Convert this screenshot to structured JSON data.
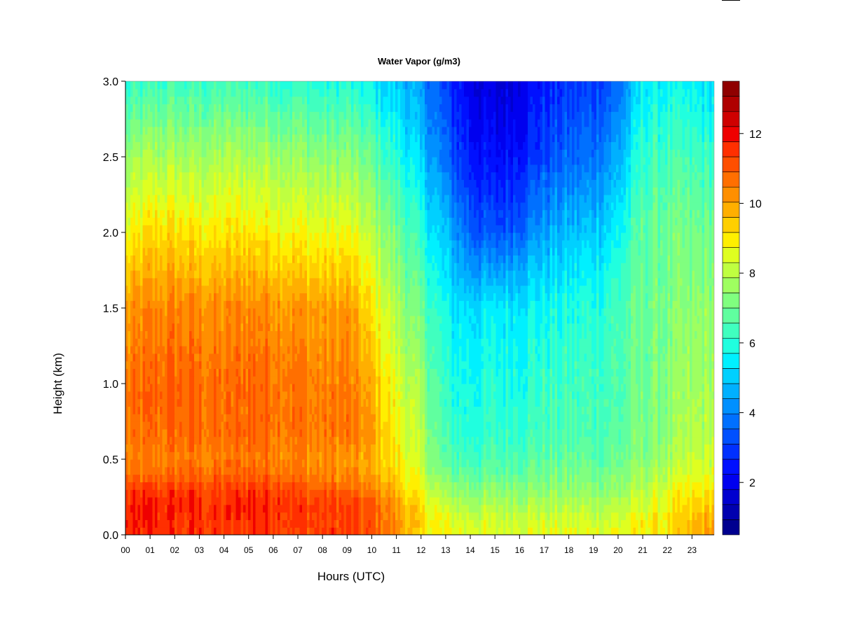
{
  "chart_data": {
    "type": "heatmap",
    "title": "Water Vapor (g/m3)",
    "xlabel": "Hours (UTC)",
    "ylabel": "Height (km)",
    "x_ticks": [
      "00",
      "01",
      "02",
      "03",
      "04",
      "05",
      "06",
      "07",
      "08",
      "09",
      "10",
      "11",
      "12",
      "13",
      "14",
      "15",
      "16",
      "17",
      "18",
      "19",
      "20",
      "21",
      "22",
      "23"
    ],
    "y_ticks": [
      "0.0",
      "0.5",
      "1.0",
      "1.5",
      "2.0",
      "2.5",
      "3.0"
    ],
    "xlim": [
      0,
      23.9
    ],
    "ylim": [
      0,
      3.0
    ],
    "colorbar": {
      "ticks": [
        "2",
        "4",
        "6",
        "8",
        "10",
        "12"
      ],
      "range": [
        0.5,
        13.5
      ],
      "levels": [
        0.5,
        1.0,
        1.5,
        2.0,
        2.5,
        3.0,
        3.5,
        4.0,
        4.5,
        5.0,
        5.5,
        6.0,
        6.5,
        7.0,
        7.5,
        8.0,
        8.5,
        9.0,
        9.5,
        10.0,
        10.5,
        11.0,
        11.5,
        12.0,
        12.5,
        13.0,
        13.5
      ],
      "colors": [
        "#00008F",
        "#0000AF",
        "#0000CF",
        "#0000EF",
        "#0010FF",
        "#0030FF",
        "#0050FF",
        "#0070FF",
        "#0090FF",
        "#00B0FF",
        "#00D0FF",
        "#00F0FF",
        "#20FFDF",
        "#40FFBF",
        "#60FF9F",
        "#80FF7F",
        "#9FFF60",
        "#BFFF40",
        "#DFFF20",
        "#FFEF00",
        "#FFCF00",
        "#FFAF00",
        "#FF8F00",
        "#FF6F00",
        "#FF4F00",
        "#FF2F00",
        "#EF0000",
        "#CF0000",
        "#AF0000",
        "#8F0000"
      ]
    },
    "heights_km": [
      0.0,
      0.1,
      0.2,
      0.3,
      0.4,
      0.5,
      0.7,
      1.0,
      1.5,
      2.0,
      2.5,
      3.0
    ],
    "hours": [
      0,
      1,
      2,
      3,
      4,
      5,
      6,
      7,
      8,
      9,
      10,
      11,
      12,
      13,
      14,
      15,
      16,
      17,
      18,
      19,
      20,
      21,
      22,
      23,
      23.9
    ],
    "values": [
      [
        11.5,
        11.5,
        11.5,
        11.5,
        11.3,
        11.5,
        11.5,
        11.3,
        11.3,
        11.3,
        11.0,
        10.2,
        9.0,
        8.7,
        8.6,
        8.5,
        8.6,
        8.6,
        8.6,
        8.6,
        8.6,
        8.9,
        9.0,
        9.5,
        10.3
      ],
      [
        11.6,
        11.7,
        11.6,
        11.5,
        11.4,
        11.6,
        11.7,
        11.4,
        11.3,
        11.3,
        11.0,
        10.3,
        9.2,
        8.5,
        8.3,
        8.3,
        8.4,
        8.3,
        8.3,
        8.3,
        8.4,
        8.8,
        9.0,
        9.5,
        10.0
      ],
      [
        11.6,
        11.7,
        11.7,
        11.6,
        11.5,
        11.8,
        11.8,
        11.5,
        11.4,
        11.3,
        11.0,
        10.1,
        9.0,
        8.1,
        7.8,
        7.8,
        7.9,
        7.9,
        7.9,
        7.9,
        7.9,
        8.3,
        8.8,
        9.1,
        9.4
      ],
      [
        11.2,
        11.3,
        11.4,
        11.3,
        11.3,
        11.5,
        11.4,
        11.2,
        11.0,
        10.8,
        10.5,
        9.6,
        8.6,
        7.5,
        7.3,
        7.3,
        7.4,
        7.4,
        7.4,
        7.4,
        7.5,
        8.0,
        8.5,
        8.8,
        9.0
      ],
      [
        10.6,
        10.7,
        10.8,
        10.8,
        10.7,
        10.9,
        10.8,
        10.6,
        10.4,
        10.3,
        10.0,
        9.2,
        8.3,
        7.0,
        6.8,
        6.8,
        7.0,
        7.0,
        7.1,
        7.1,
        7.2,
        7.6,
        8.0,
        8.4,
        8.6
      ],
      [
        10.3,
        10.4,
        10.5,
        10.5,
        10.4,
        10.6,
        10.6,
        10.4,
        10.2,
        10.1,
        9.8,
        9.0,
        8.0,
        6.6,
        6.4,
        6.5,
        6.7,
        6.7,
        6.8,
        6.8,
        6.9,
        7.3,
        7.7,
        8.1,
        8.3
      ],
      [
        10.5,
        10.7,
        10.8,
        10.8,
        10.6,
        10.9,
        10.8,
        10.6,
        10.5,
        10.6,
        10.0,
        8.8,
        7.8,
        6.2,
        6.0,
        6.1,
        6.3,
        6.4,
        6.5,
        6.5,
        6.7,
        7.1,
        7.4,
        7.8,
        8.0
      ],
      [
        10.5,
        10.8,
        10.9,
        10.8,
        10.6,
        10.9,
        10.8,
        10.6,
        10.4,
        10.5,
        9.7,
        8.5,
        7.5,
        6.0,
        5.8,
        5.9,
        6.0,
        6.2,
        6.3,
        6.4,
        6.5,
        7.0,
        7.3,
        7.6,
        7.8
      ],
      [
        10.0,
        10.3,
        10.4,
        10.3,
        10.2,
        10.4,
        10.3,
        10.1,
        10.0,
        10.1,
        9.0,
        7.8,
        6.8,
        5.6,
        5.3,
        5.4,
        5.6,
        5.7,
        5.9,
        6.0,
        6.4,
        6.9,
        7.1,
        7.3,
        7.5
      ],
      [
        8.6,
        9.2,
        9.2,
        9.0,
        9.0,
        9.1,
        9.0,
        8.8,
        8.6,
        8.7,
        8.0,
        7.0,
        6.0,
        4.8,
        3.6,
        3.2,
        3.8,
        4.5,
        4.8,
        5.0,
        5.6,
        6.8,
        7.0,
        7.0,
        7.1
      ],
      [
        7.4,
        7.8,
        7.8,
        7.7,
        7.8,
        7.8,
        7.7,
        7.6,
        7.4,
        7.4,
        6.8,
        6.0,
        5.0,
        3.6,
        2.6,
        2.2,
        2.6,
        3.2,
        3.6,
        3.8,
        4.6,
        6.2,
        6.4,
        6.3,
        6.2
      ],
      [
        6.0,
        6.3,
        6.3,
        6.2,
        6.3,
        6.3,
        6.2,
        6.1,
        5.9,
        5.9,
        5.5,
        5.0,
        4.2,
        3.0,
        2.0,
        1.6,
        2.0,
        2.6,
        2.9,
        3.0,
        3.6,
        5.5,
        5.6,
        5.4,
        5.3
      ]
    ]
  }
}
